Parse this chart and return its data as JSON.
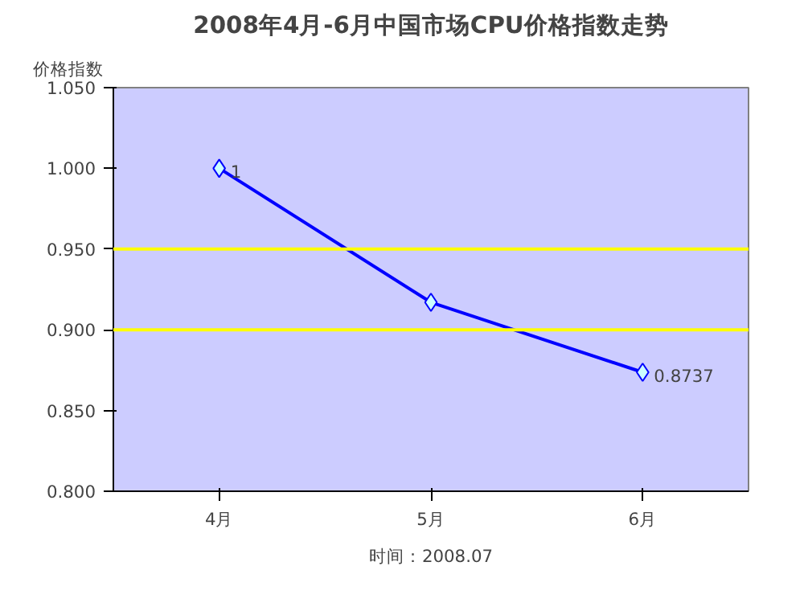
{
  "chart_data": {
    "type": "line",
    "title": "2008年4月-6月中国市场CPU价格指数走势",
    "ylabel": "价格指数",
    "categories": [
      "4月",
      "5月",
      "6月"
    ],
    "series": [
      {
        "color": "#0000ff",
        "values": [
          1,
          0.917,
          0.8737
        ]
      }
    ],
    "value_labels": [
      "1",
      null,
      "0.8737"
    ],
    "ylim": [
      0.8,
      1.05
    ],
    "yticks": [
      {
        "value": 0.8,
        "label": "0.800"
      },
      {
        "value": 0.85,
        "label": "0.850"
      },
      {
        "value": 0.9,
        "label": "0.900"
      },
      {
        "value": 0.95,
        "label": "0.950"
      },
      {
        "value": 1.0,
        "label": "1.000"
      },
      {
        "value": 1.05,
        "label": "1.050"
      }
    ],
    "ref_lines": [
      {
        "axis": "y",
        "value": 0.95,
        "label": null,
        "color": "#ffff00"
      },
      {
        "axis": "y",
        "value": 0.9,
        "label": null,
        "color": "#ffff00"
      }
    ],
    "grid": false,
    "marker": "diamond",
    "line_style": "solid",
    "annotations": [
      "时间：2008.07"
    ]
  }
}
